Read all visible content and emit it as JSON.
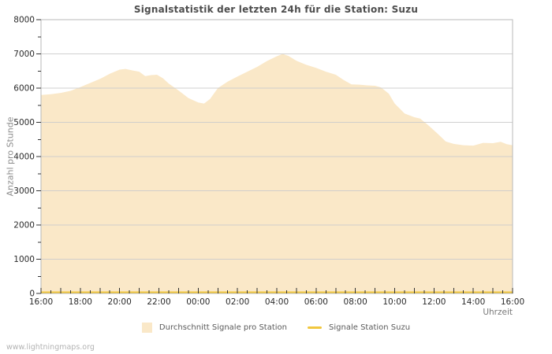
{
  "page": {
    "watermark": "www.lightningmaps.org",
    "background": "#ffffff"
  },
  "chart_data": {
    "type": "area",
    "title": "Signalstatistik der letzten 24h für die Station: Suzu",
    "xlabel": "Uhrzeit",
    "ylabel": "Anzahl pro Stunde",
    "grid_on": true,
    "legend_position": "bottom",
    "x_axis": {
      "hours_span": 24,
      "tick_labels": [
        "16:00",
        "18:00",
        "20:00",
        "22:00",
        "00:00",
        "02:00",
        "04:00",
        "06:00",
        "08:00",
        "10:00",
        "12:00",
        "14:00",
        "16:00"
      ],
      "label_step_hours": 2,
      "minor_tick_minutes": 30
    },
    "y_axis": {
      "min": 0,
      "max": 8000,
      "major_step": 1000,
      "minor_step": 500,
      "tick_labels": [
        "0",
        "1000",
        "2000",
        "3000",
        "4000",
        "5000",
        "6000",
        "7000",
        "8000"
      ]
    },
    "grid": {
      "gridline_color": "#cccccc",
      "frame_color": "#b8b8b8",
      "tick_color": "#333333",
      "tick_label_color": "#2b2b2b"
    },
    "series": [
      {
        "name": "Durchschnitt Signale pro Station",
        "type": "area",
        "fill": "#fae8c8",
        "x": [
          0,
          0.5,
          1,
          1.5,
          2,
          2.5,
          3,
          3.5,
          4,
          4.3,
          4.7,
          5,
          5.3,
          5.6,
          5.9,
          6.2,
          6.5,
          7,
          7.5,
          8,
          8.3,
          8.6,
          9,
          9.5,
          10,
          10.5,
          11,
          11.5,
          12,
          12.3,
          12.6,
          13,
          13.5,
          14,
          14.5,
          15,
          15.4,
          15.8,
          16.2,
          16.6,
          17,
          17.3,
          17.7,
          18,
          18.5,
          19,
          19.3,
          19.7,
          20.2,
          20.6,
          21,
          21.5,
          22,
          22.5,
          23,
          23.4,
          23.7,
          24
        ],
        "values": [
          5800,
          5820,
          5860,
          5920,
          6030,
          6150,
          6270,
          6420,
          6540,
          6560,
          6510,
          6480,
          6350,
          6380,
          6390,
          6290,
          6130,
          5930,
          5710,
          5580,
          5550,
          5680,
          6000,
          6190,
          6340,
          6480,
          6620,
          6790,
          6930,
          7000,
          6940,
          6800,
          6680,
          6590,
          6480,
          6390,
          6240,
          6110,
          6100,
          6080,
          6070,
          6020,
          5840,
          5550,
          5260,
          5150,
          5110,
          4920,
          4660,
          4440,
          4370,
          4330,
          4320,
          4400,
          4390,
          4430,
          4360,
          4330
        ]
      },
      {
        "name": "Signale Station Suzu",
        "type": "line",
        "color": "#f1c73e",
        "x": [
          0,
          24
        ],
        "values": [
          35,
          35
        ]
      }
    ]
  }
}
